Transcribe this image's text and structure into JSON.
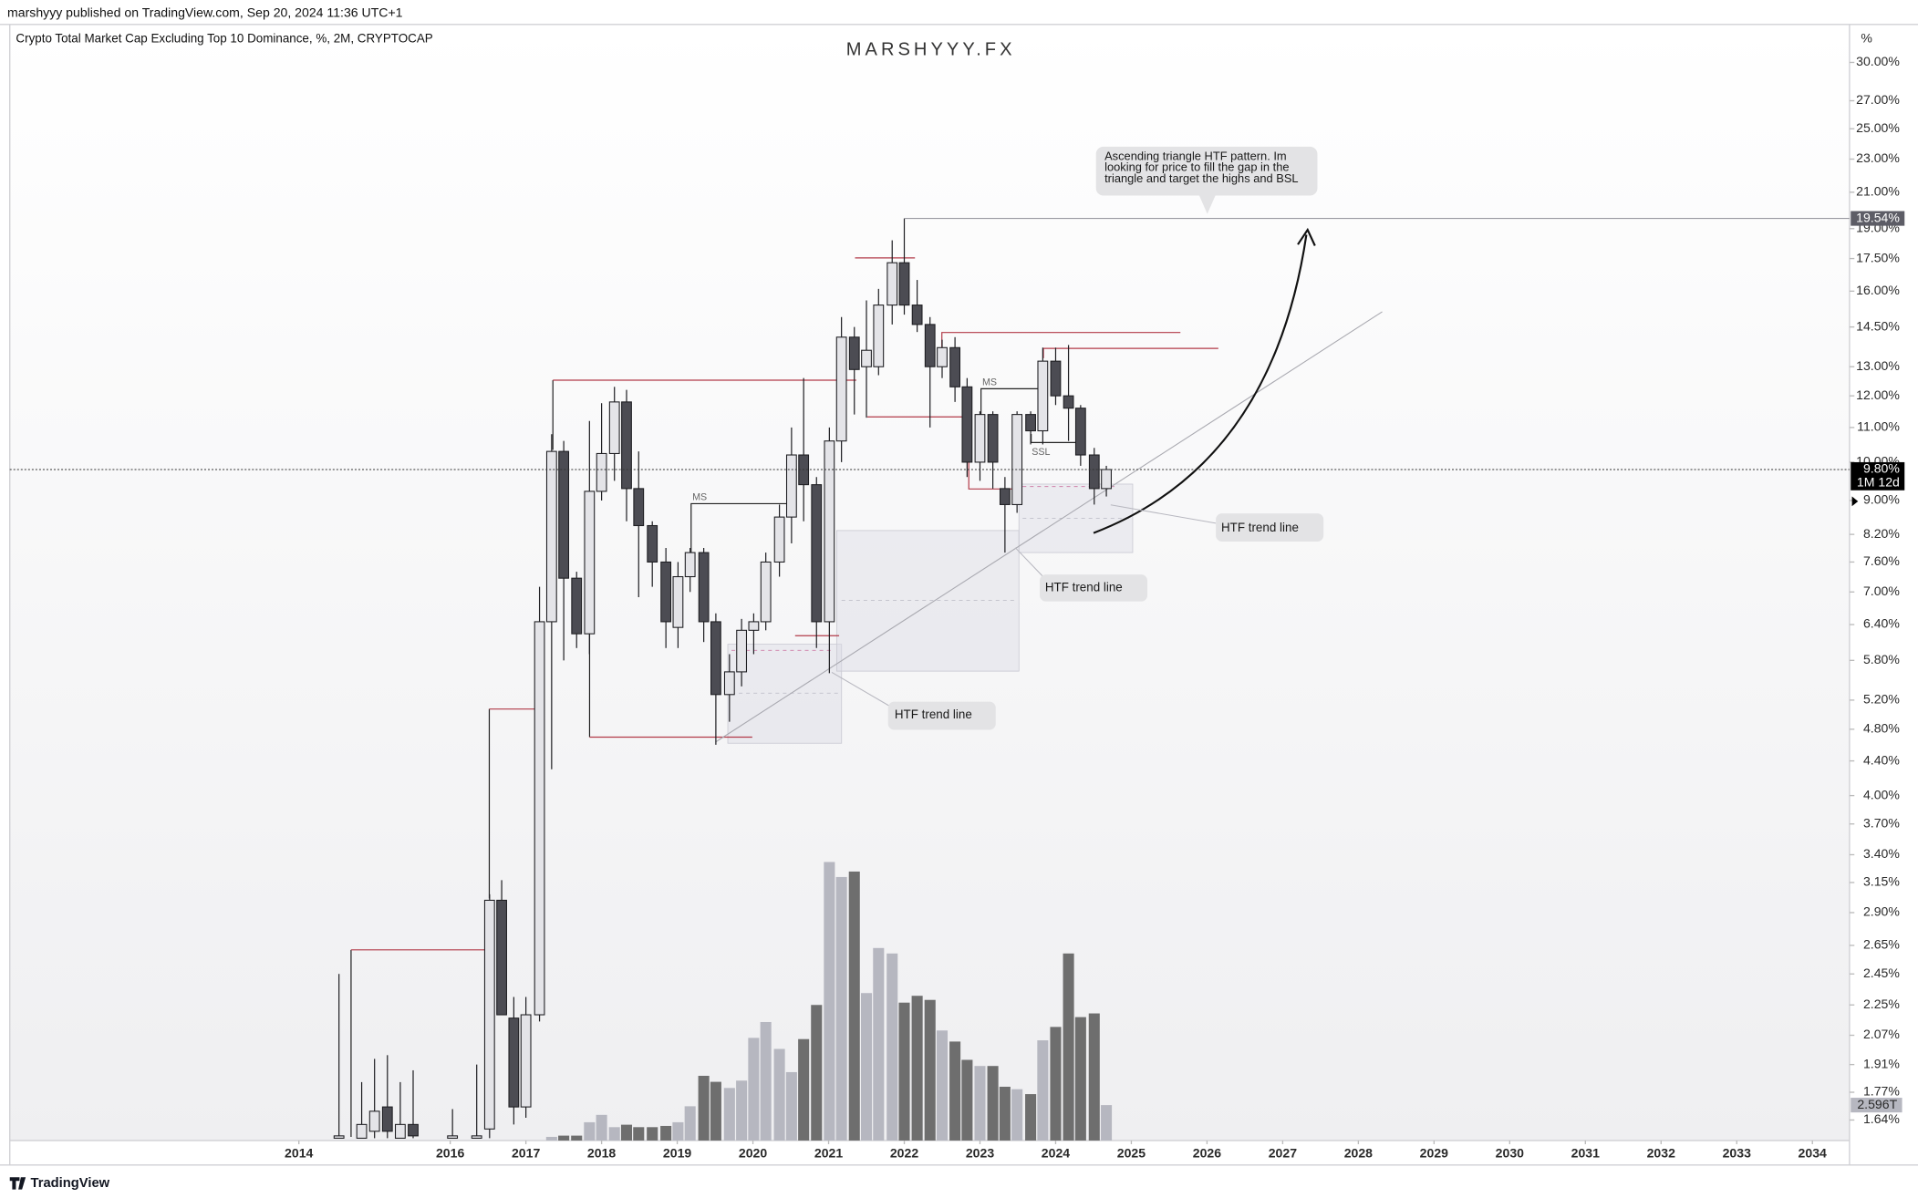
{
  "header": "marshyyy published on TradingView.com, Sep 20, 2024 11:36 UTC+1",
  "footer_brand": "TradingView",
  "chart_data": {
    "type": "candlestick",
    "title": "Crypto Total Market Cap Excluding Top 10 Dominance, %, 2M, CRYPTOCAP",
    "watermark": "MARSHYYY.FX",
    "y_unit": "%",
    "log_scale": true,
    "xlim": [
      2010.18,
      2034.49
    ],
    "xticks": [
      2014,
      2016,
      2017,
      2018,
      2019,
      2020,
      2021,
      2022,
      2023,
      2024,
      2025,
      2026,
      2027,
      2028,
      2029,
      2030,
      2031,
      2032,
      2033,
      2034
    ],
    "ylim": [
      1.55,
      33.3
    ],
    "yticks": [
      {
        "value": 30,
        "label": "30.00%"
      },
      {
        "value": 27,
        "label": "27.00%"
      },
      {
        "value": 25,
        "label": "25.00%"
      },
      {
        "value": 23,
        "label": "23.00%"
      },
      {
        "value": 21,
        "label": "21.00%"
      },
      {
        "value": 19,
        "label": "19.00%"
      },
      {
        "value": 17.5,
        "label": "17.50%"
      },
      {
        "value": 16,
        "label": "16.00%"
      },
      {
        "value": 14.5,
        "label": "14.50%"
      },
      {
        "value": 13,
        "label": "13.00%"
      },
      {
        "value": 12,
        "label": "12.00%"
      },
      {
        "value": 11,
        "label": "11.00%"
      },
      {
        "value": 10,
        "label": "10.00%"
      },
      {
        "value": 9,
        "label": "9.00%"
      },
      {
        "value": 8.2,
        "label": "8.20%"
      },
      {
        "value": 7.6,
        "label": "7.60%"
      },
      {
        "value": 7,
        "label": "7.00%"
      },
      {
        "value": 6.4,
        "label": "6.40%"
      },
      {
        "value": 5.8,
        "label": "5.80%"
      },
      {
        "value": 5.2,
        "label": "5.20%"
      },
      {
        "value": 4.8,
        "label": "4.80%"
      },
      {
        "value": 4.4,
        "label": "4.40%"
      },
      {
        "value": 4,
        "label": "4.00%"
      },
      {
        "value": 3.7,
        "label": "3.70%"
      },
      {
        "value": 3.4,
        "label": "3.40%"
      },
      {
        "value": 3.15,
        "label": "3.15%"
      },
      {
        "value": 2.9,
        "label": "2.90%"
      },
      {
        "value": 2.65,
        "label": "2.65%"
      },
      {
        "value": 2.45,
        "label": "2.45%"
      },
      {
        "value": 2.25,
        "label": "2.25%"
      },
      {
        "value": 2.07,
        "label": "2.07%"
      },
      {
        "value": 1.91,
        "label": "1.91%"
      },
      {
        "value": 1.77,
        "label": "1.77%"
      },
      {
        "value": 1.64,
        "label": "1.64%"
      }
    ],
    "x": [
      2014.53,
      2014.83,
      2015.0,
      2015.17,
      2015.34,
      2015.51,
      2016.03,
      2016.35,
      2016.52,
      2016.68,
      2016.84,
      2017.0,
      2017.18,
      2017.34,
      2017.5,
      2017.67,
      2017.84,
      2018.0,
      2018.17,
      2018.33,
      2018.49,
      2018.67,
      2018.85,
      2019.01,
      2019.17,
      2019.35,
      2019.51,
      2019.69,
      2019.85,
      2020.01,
      2020.17,
      2020.35,
      2020.51,
      2020.67,
      2020.84,
      2021.01,
      2021.17,
      2021.34,
      2021.5,
      2021.66,
      2021.84,
      2022.0,
      2022.17,
      2022.34,
      2022.5,
      2022.67,
      2022.83,
      2023.0,
      2023.17,
      2023.33,
      2023.49,
      2023.67,
      2023.83,
      2024.0,
      2024.17,
      2024.33,
      2024.51,
      2024.67
    ],
    "open": [
      1.56,
      1.56,
      1.59,
      1.7,
      1.56,
      1.62,
      1.56,
      1.56,
      1.6,
      3.0,
      2.17,
      1.7,
      2.19,
      6.45,
      10.3,
      7.27,
      6.24,
      9.23,
      10.24,
      11.8,
      9.3,
      8.4,
      7.6,
      6.35,
      7.3,
      7.8,
      6.45,
      5.28,
      5.62,
      6.3,
      6.45,
      7.6,
      8.6,
      10.2,
      9.4,
      6.45,
      10.6,
      14.1,
      13.0,
      13.0,
      15.4,
      17.3,
      15.4,
      14.6,
      13.0,
      13.7,
      12.3,
      10.0,
      11.4,
      9.3,
      8.9,
      11.4,
      10.9,
      13.2,
      12.0,
      11.6,
      10.2,
      9.3
    ],
    "high": [
      2.45,
      1.82,
      1.94,
      1.96,
      1.82,
      1.88,
      1.69,
      1.91,
      3.05,
      3.17,
      2.3,
      2.3,
      7.1,
      10.8,
      10.6,
      7.4,
      11.2,
      11.76,
      12.3,
      12.2,
      10.3,
      8.5,
      7.9,
      7.6,
      7.9,
      7.9,
      6.6,
      5.9,
      6.5,
      6.6,
      7.8,
      8.9,
      11.0,
      12.6,
      9.6,
      11.0,
      14.9,
      14.5,
      15.6,
      16.1,
      18.4,
      19.54,
      16.5,
      14.9,
      14.0,
      14.1,
      12.6,
      11.5,
      11.5,
      9.6,
      11.5,
      11.5,
      13.7,
      13.7,
      13.8,
      11.7,
      10.4,
      9.9
    ],
    "low": [
      1.56,
      1.56,
      1.56,
      1.56,
      1.56,
      1.56,
      1.56,
      1.56,
      1.56,
      2.19,
      1.62,
      1.65,
      2.15,
      4.3,
      5.8,
      6.0,
      5.9,
      9.0,
      9.5,
      8.5,
      6.9,
      7.1,
      6.0,
      6.0,
      7.0,
      6.1,
      4.6,
      4.9,
      5.4,
      5.9,
      6.3,
      7.3,
      8.0,
      8.5,
      6.0,
      5.6,
      10.0,
      11.4,
      11.3,
      12.7,
      14.6,
      15.0,
      14.3,
      11.0,
      12.6,
      11.8,
      9.6,
      9.5,
      9.3,
      7.8,
      8.7,
      10.5,
      10.5,
      11.7,
      10.6,
      9.9,
      8.9,
      9.1
    ],
    "close": [
      1.57,
      1.62,
      1.68,
      1.59,
      1.62,
      1.57,
      1.57,
      1.57,
      3.0,
      2.19,
      1.7,
      2.19,
      6.45,
      10.3,
      7.27,
      6.24,
      9.23,
      10.24,
      11.8,
      9.3,
      8.4,
      7.6,
      6.45,
      7.3,
      7.8,
      6.45,
      5.28,
      5.62,
      6.3,
      6.45,
      7.6,
      8.6,
      10.2,
      9.4,
      6.45,
      10.6,
      14.1,
      12.9,
      13.6,
      15.4,
      17.3,
      15.4,
      14.6,
      13.0,
      13.7,
      12.3,
      10.0,
      11.4,
      10.0,
      8.9,
      11.4,
      10.9,
      13.2,
      12.0,
      11.6,
      10.2,
      9.3,
      9.8
    ],
    "up_color": "#e4e4e8",
    "down_color": "#4c4c53",
    "outline_color": "#1e1e22",
    "volume": [
      null,
      null,
      null,
      null,
      null,
      null,
      null,
      null,
      null,
      null,
      null,
      null,
      null,
      0.27,
      0.36,
      0.36,
      1.34,
      1.88,
      0.98,
      1.16,
      0.98,
      0.98,
      1.07,
      1.34,
      2.51,
      4.74,
      4.3,
      3.85,
      4.39,
      7.52,
      8.68,
      6.71,
      5.01,
      7.43,
      9.93,
      20.4,
      19.3,
      19.7,
      10.8,
      14.1,
      13.7,
      10.1,
      10.6,
      10.3,
      8.06,
      7.25,
      5.91,
      5.46,
      5.46,
      3.94,
      3.76,
      3.4,
      7.34,
      8.32,
      13.7,
      9.04,
      9.31,
      2.596
    ],
    "volume_up_color": "#b6b7c0",
    "volume_down_color": "#6e6e6e",
    "volume_label": "2.596T",
    "last_price": {
      "value": 9.8,
      "label": "9.80%"
    },
    "countdown": "1M 12d",
    "high_marker": {
      "value": 19.54,
      "label": "19.54%"
    },
    "annotations": [
      "Ascending triangle HTF pattern. Im looking for price to fill the gap in the triangle and target the highs and BSL",
      "HTF trend line",
      "HTF trend line",
      "HTF trend line",
      "MS",
      "MS",
      "SSL"
    ]
  }
}
